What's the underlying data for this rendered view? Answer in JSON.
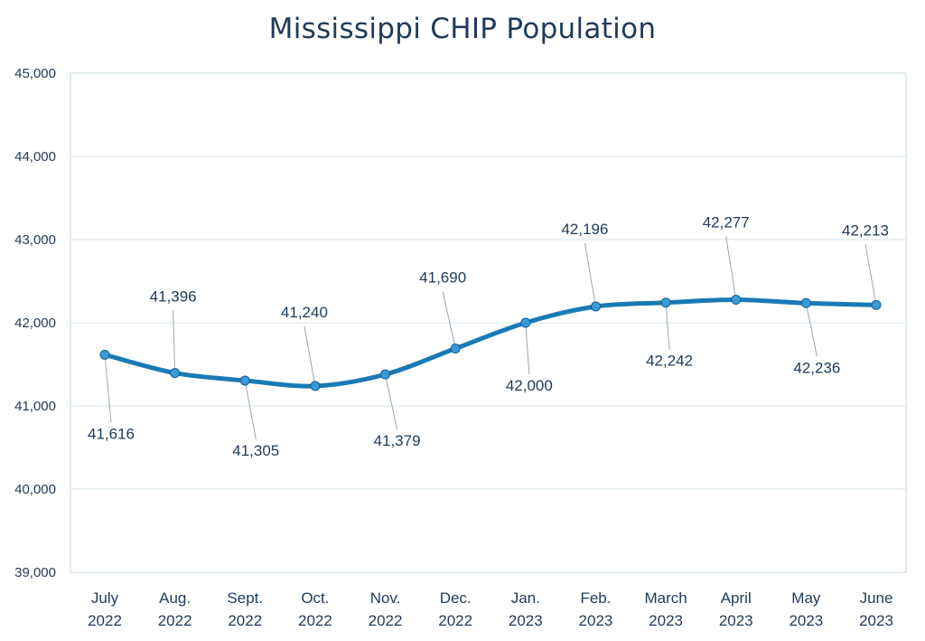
{
  "chart_data": {
    "type": "line",
    "title": "Mississippi CHIP Population",
    "categories": [
      [
        "July",
        "2022"
      ],
      [
        "Aug.",
        "2022"
      ],
      [
        "Sept.",
        "2022"
      ],
      [
        "Oct.",
        "2022"
      ],
      [
        "Nov.",
        "2022"
      ],
      [
        "Dec.",
        "2022"
      ],
      [
        "Jan.",
        "2023"
      ],
      [
        "Feb.",
        "2023"
      ],
      [
        "March",
        "2023"
      ],
      [
        "April",
        "2023"
      ],
      [
        "May",
        "2023"
      ],
      [
        "June",
        "2023"
      ]
    ],
    "values": [
      41616,
      41396,
      41305,
      41240,
      41379,
      41690,
      42000,
      42196,
      42242,
      42277,
      42236,
      42213
    ],
    "data_labels": [
      "41,616",
      "41,396",
      "41,305",
      "41,240",
      "41,379",
      "41,690",
      "42,000",
      "42,196",
      "42,242",
      "42,277",
      "42,236",
      "42,213"
    ],
    "label_positions": [
      "below",
      "above",
      "below",
      "above",
      "below",
      "above",
      "below",
      "above",
      "below",
      "above",
      "below",
      "above"
    ],
    "yticks": [
      "39,000",
      "40,000",
      "41,000",
      "42,000",
      "43,000",
      "44,000",
      "45,000"
    ],
    "ylim": [
      39000,
      45000
    ],
    "grid": true,
    "legend": "none",
    "colors": {
      "line": "#1a7ab5",
      "marker": "#3a9ad6",
      "grid": "#d6e6ee",
      "text": "#1f3a5a",
      "leader": "#9aa5ad"
    }
  }
}
